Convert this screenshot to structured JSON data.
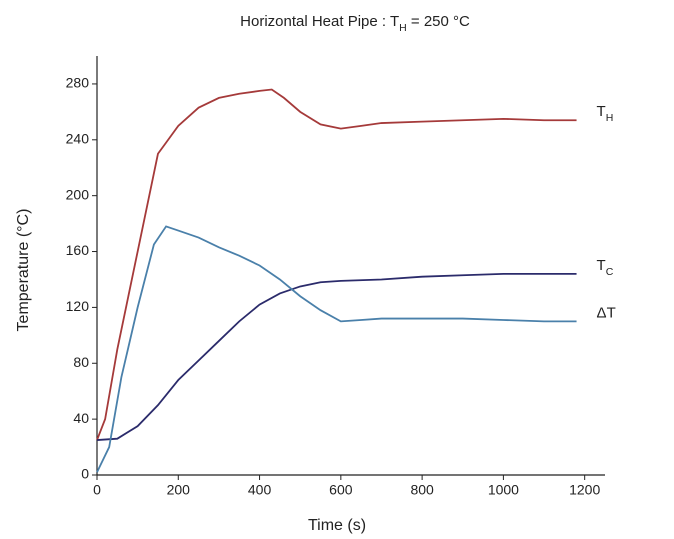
{
  "chart_data": {
    "type": "line",
    "title": "Horizontal Heat Pipe : T_H = 250 °C",
    "x_label": "Time (s)",
    "y_label": "Temperature (°C)",
    "xlim": [
      0,
      1250
    ],
    "xticks": [
      0,
      200,
      400,
      600,
      800,
      1000,
      1200
    ],
    "ylim": [
      0,
      300
    ],
    "yticks": [
      0,
      40,
      80,
      120,
      160,
      200,
      240,
      280
    ],
    "grid": false,
    "series": [
      {
        "name": "T_H",
        "color": "#a53a3a",
        "x": [
          0,
          20,
          50,
          100,
          150,
          170,
          200,
          250,
          300,
          350,
          400,
          430,
          460,
          500,
          550,
          600,
          650,
          700,
          800,
          900,
          1000,
          1100,
          1180
        ],
        "values": [
          25,
          40,
          90,
          160,
          230,
          238,
          250,
          263,
          270,
          273,
          275,
          276,
          270,
          260,
          251,
          248,
          250,
          252,
          253,
          254,
          255,
          254,
          254
        ]
      },
      {
        "name": "T_C",
        "color": "#2b2b6b",
        "x": [
          0,
          50,
          100,
          150,
          200,
          250,
          300,
          350,
          400,
          450,
          500,
          550,
          600,
          700,
          800,
          900,
          1000,
          1100,
          1180
        ],
        "values": [
          25,
          26,
          35,
          50,
          68,
          82,
          96,
          110,
          122,
          130,
          135,
          138,
          139,
          140,
          142,
          143,
          144,
          144,
          144
        ]
      },
      {
        "name": "ΔT",
        "color": "#4a80aa",
        "x": [
          0,
          30,
          60,
          100,
          140,
          170,
          200,
          250,
          300,
          350,
          400,
          450,
          500,
          550,
          600,
          650,
          700,
          800,
          900,
          1000,
          1100,
          1180
        ],
        "values": [
          2,
          20,
          70,
          120,
          165,
          178,
          175,
          170,
          163,
          157,
          150,
          140,
          128,
          118,
          110,
          111,
          112,
          112,
          112,
          111,
          110,
          110
        ]
      }
    ]
  }
}
